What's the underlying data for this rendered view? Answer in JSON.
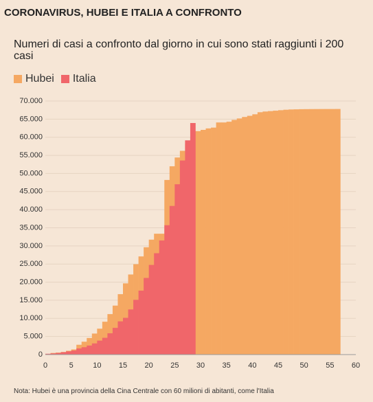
{
  "chart_data": {
    "type": "step-area",
    "title": "CORONAVIRUS, HUBEI E ITALIA A CONFRONTO",
    "subtitle": "Numeri di casi a confronto dal giorno in cui sono stati raggiunti i 200 casi",
    "note": "Nota: Hubei è una provincia della Cina Centrale con 60 milioni di abitanti, come l'Italia",
    "series": [
      {
        "name": "Hubei",
        "color": "#f5a862",
        "x": [
          1,
          2,
          3,
          4,
          5,
          6,
          7,
          8,
          9,
          10,
          11,
          12,
          13,
          14,
          15,
          16,
          17,
          18,
          19,
          20,
          21,
          22,
          23,
          24,
          25,
          26,
          27,
          28,
          29,
          30,
          31,
          32,
          33,
          34,
          35,
          36,
          37,
          38,
          39,
          40,
          41,
          42,
          43,
          44,
          45,
          46,
          47,
          48,
          49,
          50,
          51,
          52,
          53,
          54,
          55,
          56
        ],
        "values": [
          444,
          549,
          729,
          1052,
          1423,
          2714,
          3554,
          4586,
          5806,
          7153,
          9074,
          11177,
          13522,
          16678,
          19665,
          22112,
          24953,
          27100,
          29631,
          31728,
          33366,
          33366,
          48206,
          51986,
          54406,
          56249,
          58182,
          59989,
          61682,
          62031,
          62442,
          62662,
          64084,
          64084,
          64287,
          64786,
          65187,
          65596,
          65914,
          66337,
          66907,
          67103,
          67217,
          67332,
          67466,
          67592,
          67666,
          67707,
          67743,
          67760,
          67773,
          67781,
          67786,
          67790,
          67794,
          67801
        ]
      },
      {
        "name": "Italia",
        "color": "#f0666a",
        "x": [
          0,
          1,
          2,
          3,
          4,
          5,
          6,
          7,
          8,
          9,
          10,
          11,
          12,
          13,
          14,
          15,
          16,
          17,
          18,
          19,
          20,
          21,
          22,
          23,
          24,
          25,
          26,
          27,
          28
        ],
        "values": [
          229,
          322,
          453,
          655,
          888,
          1128,
          1694,
          2036,
          2502,
          3089,
          3858,
          4636,
          5883,
          7375,
          9172,
          10149,
          12462,
          15113,
          17660,
          21157,
          24747,
          27980,
          31506,
          35713,
          41035,
          47021,
          53578,
          59138,
          63927
        ]
      }
    ],
    "xlim": [
      0,
      60
    ],
    "xticks": [
      0,
      5,
      10,
      15,
      20,
      25,
      30,
      35,
      40,
      45,
      50,
      55,
      60
    ],
    "ylim": [
      0,
      70000
    ],
    "yticks": [
      0,
      {
        "value": 5000,
        "label": "5.000"
      },
      {
        "value": 10000,
        "label": "10.000"
      },
      {
        "value": 15000,
        "label": "15.000"
      },
      {
        "value": 20000,
        "label": "20.000"
      },
      {
        "value": 25000,
        "label": "25.000"
      },
      {
        "value": 30000,
        "label": "30.000"
      },
      {
        "value": 35000,
        "label": "35.000"
      },
      {
        "value": 40000,
        "label": "40.000"
      },
      {
        "value": 45000,
        "label": "45.000"
      },
      {
        "value": 50000,
        "label": "50.000"
      },
      {
        "value": 55000,
        "label": "55.000"
      },
      {
        "value": 60000,
        "label": "60.000"
      },
      {
        "value": 65000,
        "label": "65.000"
      },
      {
        "value": 70000,
        "label": "70.000"
      }
    ],
    "grid": true
  }
}
